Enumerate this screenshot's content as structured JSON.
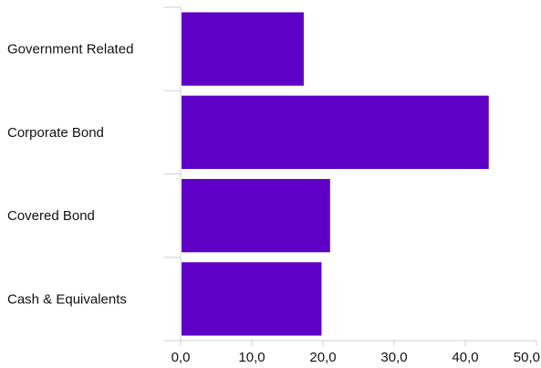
{
  "chart_data": {
    "type": "bar",
    "orientation": "horizontal",
    "categories": [
      "Government Related",
      "Corporate Bond",
      "Covered Bond",
      "Cash & Equivalents"
    ],
    "values": [
      17.3,
      43.3,
      21.0,
      19.8
    ],
    "xlim": [
      0,
      50
    ],
    "x_ticks": [
      "0,0",
      "10,0",
      "20,0",
      "30,0",
      "40,0",
      "50,0"
    ],
    "bar_color": "#5e00c6",
    "grid": false
  }
}
